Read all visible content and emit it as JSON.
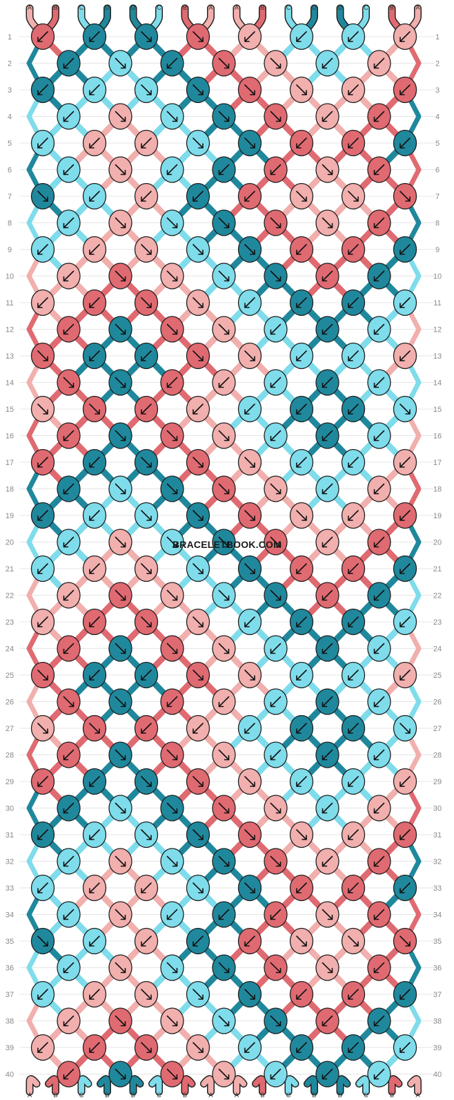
{
  "site": {
    "watermark": "BRACELETBOOK.COM"
  },
  "colors": {
    "A": "#f1afad",
    "B": "#e06a71",
    "C": "#7fdceb",
    "D": "#20889c"
  },
  "strands": {
    "top": [
      "A",
      "B",
      "C",
      "D",
      "D",
      "C",
      "B",
      "A",
      "A",
      "B",
      "C",
      "D",
      "D",
      "C",
      "B",
      "A"
    ],
    "bottom": [
      "A",
      "B",
      "C",
      "D",
      "D",
      "C",
      "B",
      "A",
      "A",
      "B",
      "C",
      "D",
      "D",
      "C",
      "B",
      "A"
    ]
  },
  "rows": [
    [
      "B",
      "D",
      "D",
      "B",
      "A",
      "C",
      "C",
      "A"
    ],
    [
      "D",
      "C",
      "D",
      "B",
      "A",
      "C",
      "A"
    ],
    [
      "D",
      "C",
      "C",
      "D",
      "B",
      "A",
      "A",
      "B"
    ],
    [
      "C",
      "A",
      "C",
      "D",
      "B",
      "A",
      "B"
    ],
    [
      "C",
      "A",
      "A",
      "C",
      "D",
      "B",
      "B",
      "D"
    ],
    [
      "C",
      "A",
      "C",
      "D",
      "B",
      "A",
      "B"
    ],
    [
      "D",
      "C",
      "A",
      "D",
      "B",
      "A",
      "A",
      "B"
    ],
    [
      "C",
      "A",
      "C",
      "D",
      "B",
      "A",
      "B"
    ],
    [
      "C",
      "A",
      "A",
      "C",
      "D",
      "B",
      "B",
      "D"
    ],
    [
      "A",
      "B",
      "A",
      "C",
      "D",
      "B",
      "D"
    ],
    [
      "A",
      "B",
      "B",
      "A",
      "C",
      "D",
      "D",
      "C"
    ],
    [
      "B",
      "D",
      "B",
      "A",
      "C",
      "D",
      "C"
    ],
    [
      "B",
      "D",
      "D",
      "B",
      "A",
      "C",
      "C",
      "A"
    ],
    [
      "B",
      "D",
      "B",
      "A",
      "C",
      "D",
      "C"
    ],
    [
      "A",
      "B",
      "B",
      "A",
      "C",
      "D",
      "D",
      "C"
    ],
    [
      "B",
      "D",
      "B",
      "A",
      "C",
      "D",
      "C"
    ],
    [
      "B",
      "D",
      "D",
      "B",
      "A",
      "C",
      "C",
      "A"
    ],
    [
      "D",
      "C",
      "D",
      "B",
      "A",
      "C",
      "A"
    ],
    [
      "D",
      "C",
      "C",
      "D",
      "B",
      "A",
      "A",
      "B"
    ],
    [
      "C",
      "A",
      "C",
      "D",
      "B",
      "A",
      "B"
    ],
    [
      "C",
      "A",
      "A",
      "C",
      "D",
      "B",
      "B",
      "D"
    ],
    [
      "A",
      "B",
      "A",
      "C",
      "D",
      "B",
      "D"
    ],
    [
      "A",
      "B",
      "B",
      "A",
      "C",
      "D",
      "D",
      "C"
    ],
    [
      "B",
      "D",
      "B",
      "A",
      "C",
      "D",
      "C"
    ],
    [
      "B",
      "D",
      "D",
      "B",
      "A",
      "C",
      "C",
      "A"
    ],
    [
      "B",
      "D",
      "B",
      "A",
      "C",
      "D",
      "C"
    ],
    [
      "A",
      "B",
      "B",
      "A",
      "C",
      "D",
      "D",
      "C"
    ],
    [
      "B",
      "D",
      "B",
      "A",
      "C",
      "D",
      "C"
    ],
    [
      "B",
      "D",
      "D",
      "B",
      "A",
      "C",
      "C",
      "A"
    ],
    [
      "D",
      "C",
      "D",
      "B",
      "A",
      "C",
      "A"
    ],
    [
      "D",
      "C",
      "C",
      "D",
      "B",
      "A",
      "A",
      "B"
    ],
    [
      "C",
      "A",
      "C",
      "D",
      "B",
      "A",
      "B"
    ],
    [
      "C",
      "A",
      "A",
      "C",
      "D",
      "B",
      "B",
      "D"
    ],
    [
      "C",
      "A",
      "C",
      "D",
      "B",
      "A",
      "B"
    ],
    [
      "D",
      "C",
      "A",
      "D",
      "B",
      "A",
      "A",
      "B"
    ],
    [
      "C",
      "A",
      "C",
      "D",
      "B",
      "A",
      "B"
    ],
    [
      "C",
      "A",
      "A",
      "C",
      "D",
      "B",
      "B",
      "D"
    ],
    [
      "A",
      "B",
      "A",
      "C",
      "D",
      "B",
      "D"
    ],
    [
      "A",
      "B",
      "B",
      "A",
      "C",
      "D",
      "D",
      "C"
    ],
    [
      "B",
      "D",
      "B",
      "A",
      "C",
      "D",
      "C"
    ]
  ],
  "arrows": [
    [
      "dl",
      "dl",
      "dr",
      "dr",
      "dl",
      "dl",
      "dl"
    ],
    [
      "dl",
      "dr",
      "dl",
      "dr",
      "dr",
      "dl",
      "dl"
    ],
    [
      "dl",
      "dl",
      "dr",
      "dr",
      "dr",
      "dr",
      "dl",
      "dl"
    ],
    [
      "dl",
      "dr",
      "dr",
      "dr",
      "dr",
      "dl",
      "dl"
    ],
    [
      "bl",
      "bl",
      "bl",
      "dr",
      "dr",
      "bl",
      "bl",
      "bl"
    ],
    [
      "dl",
      "dr",
      "dl",
      "dl",
      "dl",
      "dr",
      "dl"
    ],
    [
      "br",
      "dl",
      "dl",
      "dl",
      "dl",
      "dr",
      "dr",
      "br"
    ],
    [
      "dl",
      "dr",
      "dr",
      "dr",
      "dr",
      "dr",
      "dl"
    ],
    [
      "dl",
      "dl",
      "dr",
      "dr",
      "dr",
      "dl",
      "dl",
      "dl"
    ],
    [
      "dl",
      "dr",
      "dr",
      "dr",
      "dr",
      "dl",
      "dl"
    ],
    [
      "dl",
      "dl",
      "dr",
      "dr",
      "dl",
      "dl",
      "dl",
      "dl"
    ],
    [
      "dl",
      "dr",
      "dr",
      "dr",
      "dl",
      "dl",
      "dl"
    ],
    [
      "dr",
      "dl",
      "dl",
      "dr",
      "dr",
      "dl",
      "dl",
      "bl"
    ],
    [
      "dr",
      "dr",
      "dl",
      "dl",
      "dl",
      "dl",
      "dl"
    ],
    [
      "br",
      "dr",
      "dl",
      "dl",
      "dl",
      "dl",
      "dl",
      "br"
    ],
    [
      "dl",
      "dr",
      "dr",
      "dr",
      "dl",
      "dl",
      "dl"
    ],
    [
      "dl",
      "dl",
      "dr",
      "dr",
      "dr",
      "dl",
      "dl",
      "dl"
    ],
    [
      "dl",
      "dr",
      "dr",
      "dr",
      "dr",
      "dl",
      "dl"
    ],
    [
      "dl",
      "dl",
      "dr",
      "dr",
      "dr",
      "dr",
      "dl",
      "dl"
    ],
    [
      "dl",
      "dr",
      "dr",
      "dr",
      "dr",
      "dl",
      "dl"
    ],
    [
      "dl",
      "dl",
      "dr",
      "dr",
      "dr",
      "dl",
      "dl",
      "dl"
    ],
    [
      "dl",
      "dr",
      "dr",
      "dr",
      "dr",
      "dl",
      "dl"
    ],
    [
      "dl",
      "dl",
      "dr",
      "dr",
      "dl",
      "dl",
      "dl",
      "dl"
    ],
    [
      "dl",
      "dr",
      "dr",
      "dr",
      "dl",
      "dl",
      "dl"
    ],
    [
      "dr",
      "dl",
      "dl",
      "dr",
      "dr",
      "dl",
      "dl",
      "bl"
    ],
    [
      "dr",
      "dr",
      "dl",
      "dl",
      "dl",
      "dl",
      "dl"
    ],
    [
      "br",
      "dr",
      "dl",
      "dl",
      "dl",
      "dl",
      "dl",
      "br"
    ],
    [
      "dl",
      "dr",
      "dr",
      "dr",
      "dl",
      "dl",
      "dl"
    ],
    [
      "dl",
      "dl",
      "dr",
      "dr",
      "dr",
      "dl",
      "dl",
      "dl"
    ],
    [
      "dl",
      "dr",
      "dr",
      "dr",
      "dr",
      "dl",
      "dl"
    ],
    [
      "dl",
      "dl",
      "dr",
      "dr",
      "dr",
      "dr",
      "dl",
      "dl"
    ],
    [
      "dl",
      "dr",
      "dr",
      "dr",
      "dr",
      "dl",
      "dl"
    ],
    [
      "bl",
      "bl",
      "bl",
      "dr",
      "dr",
      "bl",
      "bl",
      "bl"
    ],
    [
      "dl",
      "dr",
      "dl",
      "dl",
      "dl",
      "dr",
      "dl"
    ],
    [
      "br",
      "dl",
      "dl",
      "dl",
      "dl",
      "dr",
      "dr",
      "br"
    ],
    [
      "dl",
      "dr",
      "dr",
      "dr",
      "dr",
      "dr",
      "dl"
    ],
    [
      "dl",
      "dl",
      "dr",
      "dr",
      "dr",
      "dl",
      "dl",
      "dl"
    ],
    [
      "dl",
      "dr",
      "dr",
      "dr",
      "dr",
      "dl",
      "dl"
    ],
    [
      "dl",
      "dl",
      "dr",
      "dr",
      "dl",
      "dl",
      "dl",
      "dl"
    ],
    [
      "dl",
      "dr",
      "dr",
      "dr",
      "dl",
      "dl",
      "dl"
    ]
  ]
}
